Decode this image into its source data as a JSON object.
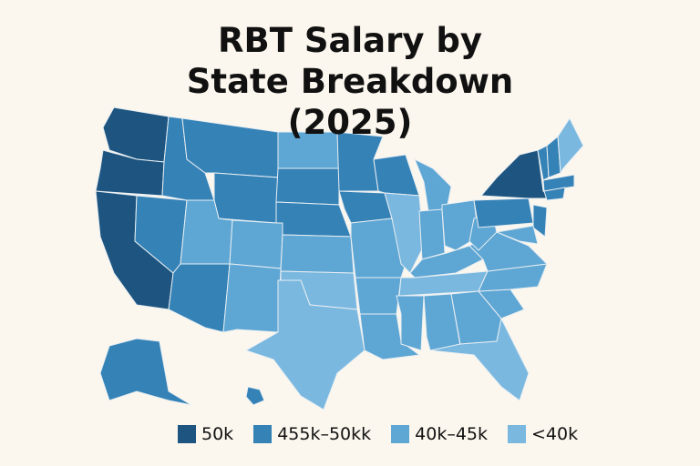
{
  "title": "RBT Salary by State Breakdown (2025)",
  "legend": [
    {
      "label": "50k",
      "color": "#1d5580"
    },
    {
      "label": "455k–50kk",
      "color": "#3582b7"
    },
    {
      "label": "40k–45k",
      "color": "#5ea6d4"
    },
    {
      "label": "<40k",
      "color": "#7ab8e0"
    }
  ],
  "state_tiers": [
    0,
    0,
    0,
    1,
    1,
    1,
    1,
    2,
    1,
    2,
    2,
    2,
    1,
    1,
    2,
    3,
    3,
    1,
    1,
    2,
    2,
    2,
    1,
    3,
    2,
    2,
    2,
    2,
    3,
    2,
    2,
    2,
    3,
    2,
    2,
    2,
    2,
    1,
    0,
    1,
    2,
    1,
    1,
    1,
    1,
    3,
    1,
    1
  ]
}
